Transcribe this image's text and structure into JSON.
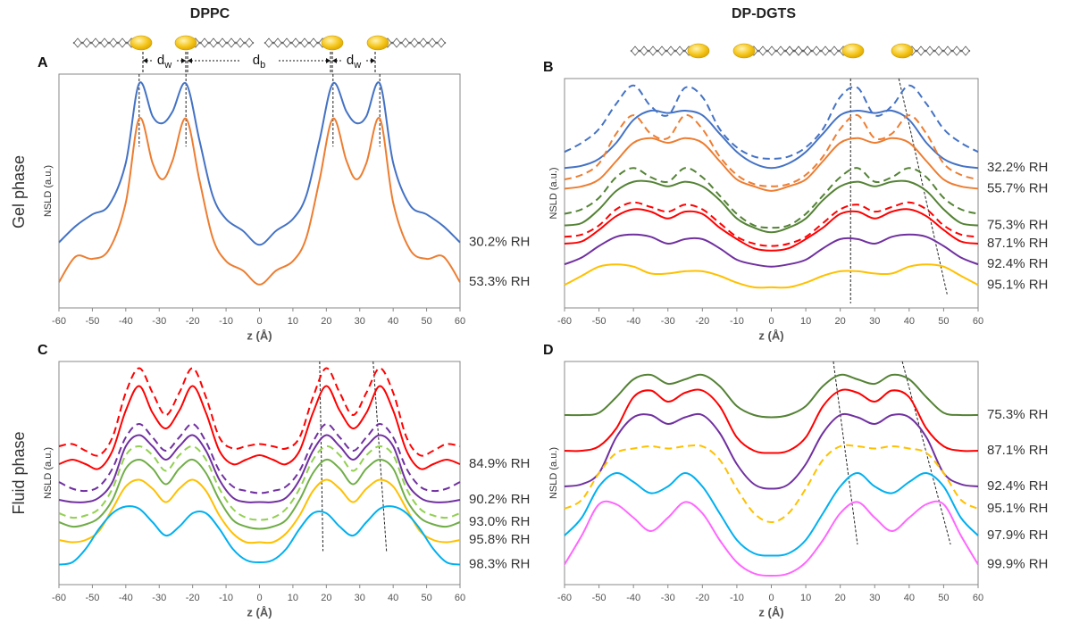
{
  "column_titles": [
    "DPPC",
    "DP-DGTS"
  ],
  "row_labels": [
    "Gel phase",
    "Fluid phase"
  ],
  "annotations": [
    {
      "main": "d",
      "sub": "w"
    },
    {
      "main": "d",
      "sub": "b"
    },
    {
      "main": "d",
      "sub": "w"
    }
  ],
  "chart_data": [
    {
      "type": "line",
      "panel_label": "A",
      "xlabel": "z (Å)",
      "ylabel": "NSLD (a.u.)",
      "x": [
        -60,
        -55,
        -50,
        -45,
        -40,
        -36,
        -32,
        -29,
        -26,
        -22,
        -18,
        -14,
        -10,
        -5,
        0,
        5,
        10,
        14,
        18,
        22,
        26,
        29,
        32,
        36,
        40,
        45,
        50,
        55,
        60
      ],
      "xlim": [
        -60,
        60
      ],
      "xticks": [
        -60,
        -50,
        -40,
        -30,
        -20,
        -10,
        0,
        10,
        20,
        30,
        40,
        50,
        60
      ],
      "ylim": [
        0,
        100
      ],
      "series": [
        {
          "name": "30.2% RH",
          "color": "#4472c4",
          "values": [
            28,
            35,
            40,
            44,
            62,
            96,
            82,
            79,
            84,
            96,
            72,
            48,
            38,
            33,
            27,
            33,
            38,
            48,
            72,
            96,
            84,
            79,
            82,
            96,
            62,
            44,
            40,
            35,
            28
          ]
        },
        {
          "name": "53.3% RH",
          "color": "#ed7d31",
          "values": [
            11,
            22,
            21,
            25,
            45,
            81,
            62,
            55,
            63,
            81,
            55,
            30,
            20,
            16,
            10,
            16,
            20,
            30,
            55,
            81,
            63,
            55,
            62,
            81,
            45,
            25,
            21,
            22,
            11
          ]
        }
      ],
      "guides": [
        {
          "x": [
            -36,
            -36
          ],
          "y": [
            100,
            69
          ]
        },
        {
          "x": [
            -22,
            -22
          ],
          "y": [
            100,
            69
          ]
        },
        {
          "x": [
            22,
            22
          ],
          "y": [
            100,
            69
          ]
        },
        {
          "x": [
            36,
            36
          ],
          "y": [
            100,
            69
          ]
        }
      ]
    },
    {
      "type": "line",
      "panel_label": "B",
      "xlabel": "z (Å)",
      "ylabel": "NSLD (a.u.)",
      "x": [
        -60,
        -55,
        -50,
        -45,
        -40,
        -35,
        -30,
        -25,
        -20,
        -15,
        -10,
        -5,
        0,
        5,
        10,
        15,
        20,
        25,
        30,
        35,
        40,
        45,
        50,
        55,
        60
      ],
      "xlim": [
        -60,
        60
      ],
      "xticks": [
        -60,
        -50,
        -40,
        -30,
        -20,
        -10,
        0,
        10,
        20,
        30,
        40,
        50,
        60
      ],
      "ylim": [
        0,
        100
      ],
      "series": [
        {
          "color": "#4472c4",
          "dashed": true,
          "values": [
            68,
            72,
            78,
            89,
            97,
            88,
            84,
            96,
            92,
            78,
            70,
            66,
            65,
            66,
            70,
            78,
            92,
            96,
            84,
            88,
            97,
            89,
            78,
            72,
            68
          ]
        },
        {
          "name": "32.2% RH",
          "color": "#4472c4",
          "values": [
            61,
            62,
            65,
            72,
            82,
            86,
            85,
            86,
            84,
            76,
            68,
            63,
            61,
            63,
            68,
            76,
            84,
            86,
            85,
            86,
            82,
            72,
            65,
            62,
            61
          ]
        },
        {
          "color": "#ed7d31",
          "dashed": true,
          "values": [
            56,
            58,
            63,
            76,
            84,
            76,
            74,
            84,
            78,
            66,
            58,
            54,
            53,
            54,
            58,
            66,
            78,
            84,
            74,
            76,
            84,
            76,
            63,
            58,
            56
          ]
        },
        {
          "name": "55.7% RH",
          "color": "#ed7d31",
          "values": [
            52,
            53,
            56,
            64,
            72,
            74,
            72,
            74,
            72,
            64,
            56,
            53,
            51,
            53,
            56,
            64,
            72,
            74,
            72,
            74,
            72,
            64,
            56,
            53,
            52
          ]
        },
        {
          "color": "#548235",
          "dashed": true,
          "values": [
            41,
            43,
            48,
            57,
            61,
            57,
            55,
            61,
            57,
            49,
            41,
            36,
            35,
            36,
            41,
            49,
            57,
            61,
            55,
            57,
            61,
            57,
            48,
            43,
            41
          ]
        },
        {
          "name": "75.3% RH",
          "color": "#548235",
          "values": [
            36,
            37,
            43,
            51,
            55,
            55,
            53,
            55,
            53,
            47,
            39,
            35,
            33,
            35,
            39,
            47,
            53,
            55,
            53,
            55,
            55,
            51,
            43,
            37,
            36
          ]
        },
        {
          "color": "#ff0000",
          "dashed": true,
          "values": [
            31,
            32,
            36,
            43,
            46,
            44,
            42,
            45,
            43,
            37,
            31,
            28,
            27,
            28,
            31,
            37,
            43,
            45,
            42,
            44,
            46,
            43,
            36,
            32,
            31
          ]
        },
        {
          "name": "87.1% RH",
          "color": "#ff0000",
          "values": [
            28,
            29,
            34,
            40,
            43,
            42,
            39,
            42,
            41,
            35,
            30,
            26,
            25,
            26,
            30,
            35,
            41,
            42,
            39,
            42,
            43,
            40,
            34,
            29,
            28
          ]
        },
        {
          "name": "92.4% RH",
          "color": "#7030a0",
          "values": [
            19,
            22,
            27,
            31,
            32,
            31,
            28,
            30,
            30,
            26,
            21,
            19,
            18,
            19,
            21,
            26,
            30,
            30,
            28,
            31,
            32,
            31,
            27,
            22,
            19
          ]
        },
        {
          "name": "95.1% RH",
          "color": "#ffc000",
          "values": [
            10,
            14,
            18,
            19,
            18,
            15,
            15,
            16,
            16,
            14,
            11,
            9,
            9,
            9,
            11,
            14,
            16,
            16,
            15,
            15,
            18,
            19,
            18,
            14,
            10
          ]
        }
      ],
      "guides": [
        {
          "x": [
            23,
            23
          ],
          "y": [
            100,
            2
          ]
        },
        {
          "x": [
            37,
            51
          ],
          "y": [
            100,
            6
          ]
        }
      ]
    },
    {
      "type": "line",
      "panel_label": "C",
      "xlabel": "z (Å)",
      "ylabel": "NSLD (a.u.)",
      "x": [
        -60,
        -56,
        -52,
        -48,
        -44,
        -40,
        -36,
        -32,
        -28,
        -24,
        -20,
        -16,
        -12,
        -8,
        -4,
        0,
        4,
        8,
        12,
        16,
        20,
        24,
        28,
        32,
        36,
        40,
        44,
        48,
        52,
        56,
        60
      ],
      "xlim": [
        -60,
        60
      ],
      "xticks": [
        -60,
        -50,
        -40,
        -30,
        -20,
        -10,
        0,
        10,
        20,
        30,
        40,
        50,
        60
      ],
      "ylim": [
        0,
        100
      ],
      "series": [
        {
          "color": "#ff0000",
          "dashed": true,
          "values": [
            62,
            63,
            60,
            58,
            66,
            86,
            97,
            86,
            76,
            86,
            97,
            84,
            66,
            61,
            62,
            63,
            62,
            61,
            66,
            84,
            97,
            86,
            76,
            86,
            97,
            86,
            66,
            58,
            60,
            63,
            62
          ]
        },
        {
          "name": "84.9% RH",
          "color": "#ff0000",
          "values": [
            54,
            56,
            54,
            52,
            60,
            78,
            89,
            77,
            70,
            78,
            89,
            77,
            60,
            54,
            56,
            58,
            56,
            54,
            60,
            77,
            89,
            78,
            70,
            77,
            89,
            78,
            60,
            52,
            54,
            56,
            54
          ]
        },
        {
          "color": "#7030a0",
          "dashed": true,
          "values": [
            46,
            43,
            42,
            44,
            52,
            66,
            72,
            66,
            60,
            66,
            72,
            64,
            51,
            44,
            42,
            41,
            42,
            44,
            51,
            64,
            72,
            66,
            60,
            66,
            72,
            66,
            52,
            44,
            42,
            43,
            46
          ]
        },
        {
          "name": "90.2% RH",
          "color": "#7030a0",
          "values": [
            38,
            37,
            37,
            39,
            46,
            62,
            67,
            62,
            56,
            62,
            67,
            60,
            47,
            39,
            37,
            37,
            37,
            39,
            47,
            60,
            67,
            62,
            56,
            62,
            67,
            62,
            46,
            39,
            37,
            37,
            38
          ]
        },
        {
          "color": "#92d050",
          "dashed": true,
          "values": [
            32,
            30,
            31,
            34,
            43,
            58,
            62,
            58,
            51,
            58,
            62,
            56,
            43,
            34,
            30,
            29,
            30,
            34,
            43,
            56,
            62,
            58,
            51,
            58,
            62,
            58,
            43,
            34,
            31,
            30,
            32
          ]
        },
        {
          "name": "93.0% RH",
          "color": "#70ad47",
          "values": [
            28,
            26,
            27,
            30,
            38,
            52,
            56,
            52,
            45,
            52,
            56,
            50,
            38,
            29,
            26,
            25,
            26,
            29,
            38,
            50,
            56,
            52,
            45,
            52,
            56,
            52,
            38,
            30,
            27,
            26,
            28
          ]
        },
        {
          "name": "95.8% RH",
          "color": "#ffc000",
          "values": [
            20,
            19,
            20,
            24,
            34,
            44,
            47,
            43,
            37,
            43,
            47,
            42,
            31,
            23,
            19,
            19,
            19,
            23,
            31,
            42,
            47,
            43,
            37,
            43,
            47,
            44,
            34,
            24,
            20,
            19,
            20
          ]
        },
        {
          "name": "98.3% RH",
          "color": "#00b0f0",
          "values": [
            9,
            10,
            16,
            25,
            32,
            35,
            34,
            28,
            22,
            26,
            32,
            32,
            25,
            16,
            11,
            10,
            11,
            16,
            25,
            32,
            32,
            26,
            22,
            28,
            34,
            35,
            32,
            25,
            16,
            10,
            9
          ]
        }
      ],
      "guides": [
        {
          "x": [
            18,
            19
          ],
          "y": [
            100,
            15
          ]
        },
        {
          "x": [
            34,
            38
          ],
          "y": [
            100,
            15
          ]
        }
      ]
    },
    {
      "type": "line",
      "panel_label": "D",
      "xlabel": "z (Å)",
      "ylabel": "NSLD (a.u.)",
      "x": [
        -60,
        -55,
        -50,
        -45,
        -40,
        -35,
        -30,
        -25,
        -20,
        -15,
        -10,
        -5,
        0,
        5,
        10,
        15,
        20,
        25,
        30,
        35,
        40,
        45,
        50,
        55,
        60
      ],
      "xlim": [
        -60,
        60
      ],
      "xticks": [
        -60,
        -50,
        -40,
        -30,
        -20,
        -10,
        0,
        10,
        20,
        30,
        40,
        50,
        60
      ],
      "ylim": [
        0,
        100
      ],
      "series": [
        {
          "name": "75.3% RH",
          "color": "#548235",
          "values": [
            76,
            76,
            77,
            84,
            92,
            94,
            90,
            92,
            94,
            89,
            80,
            76,
            75,
            76,
            80,
            89,
            94,
            92,
            90,
            94,
            92,
            84,
            77,
            76,
            76
          ]
        },
        {
          "name": "87.1% RH",
          "color": "#ff0000",
          "values": [
            60,
            60,
            62,
            70,
            84,
            87,
            82,
            86,
            87,
            80,
            66,
            60,
            59,
            60,
            66,
            80,
            87,
            86,
            82,
            87,
            84,
            70,
            62,
            60,
            60
          ]
        },
        {
          "name": "92.4% RH",
          "color": "#7030a0",
          "values": [
            44,
            45,
            50,
            66,
            75,
            76,
            72,
            75,
            76,
            68,
            54,
            45,
            43,
            45,
            54,
            68,
            76,
            75,
            72,
            76,
            75,
            66,
            50,
            45,
            44
          ]
        },
        {
          "name": "95.1% RH",
          "color": "#ffc000",
          "dashed": true,
          "values": [
            34,
            38,
            50,
            59,
            61,
            62,
            61,
            62,
            62,
            56,
            43,
            32,
            28,
            32,
            43,
            56,
            62,
            62,
            61,
            62,
            61,
            59,
            50,
            38,
            34
          ]
        },
        {
          "name": "97.9% RH",
          "color": "#00b0f0",
          "values": [
            22,
            30,
            44,
            50,
            46,
            41,
            44,
            50,
            44,
            32,
            20,
            14,
            13,
            14,
            20,
            32,
            44,
            50,
            44,
            41,
            46,
            50,
            44,
            30,
            22
          ]
        },
        {
          "name": "99.9% RH",
          "color": "#ff66ff",
          "values": [
            9,
            22,
            36,
            36,
            30,
            24,
            30,
            37,
            32,
            20,
            10,
            5,
            4,
            5,
            10,
            20,
            32,
            37,
            30,
            24,
            30,
            36,
            36,
            22,
            9
          ]
        }
      ],
      "guides": [
        {
          "x": [
            18,
            25
          ],
          "y": [
            100,
            18
          ]
        },
        {
          "x": [
            38,
            52
          ],
          "y": [
            100,
            18
          ]
        }
      ]
    }
  ]
}
